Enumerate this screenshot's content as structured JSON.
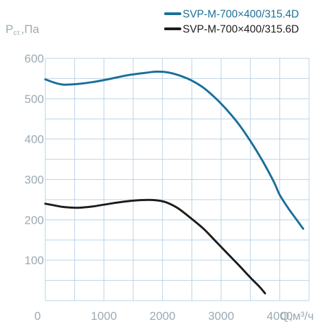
{
  "chart_data": {
    "type": "line",
    "xlabel": "Q,м³/ч",
    "ylabel": "Pст.,Па",
    "ylabel_main": "P",
    "ylabel_sub": "ст.",
    "ylabel_unit": ",Па",
    "xlim": [
      0,
      4500
    ],
    "ylim": [
      0,
      600
    ],
    "x_ticks": [
      0,
      1000,
      2000,
      3000,
      4000
    ],
    "y_ticks": [
      100,
      200,
      300,
      400,
      500,
      600
    ],
    "grid": true,
    "legend_position": "top-right",
    "series": [
      {
        "name": "SVP-M-700×400/315.4D",
        "color": "#1a6f98",
        "x": [
          0,
          150,
          300,
          500,
          800,
          1100,
          1400,
          1700,
          1900,
          2100,
          2300,
          2500,
          2700,
          2900,
          3100,
          3300,
          3500,
          3700,
          3900,
          4000,
          4150,
          4300,
          4400
        ],
        "y": [
          548,
          540,
          535,
          536,
          541,
          549,
          558,
          564,
          567,
          565,
          557,
          545,
          527,
          502,
          472,
          437,
          395,
          348,
          294,
          262,
          228,
          198,
          178
        ]
      },
      {
        "name": "SVP-M-700×400/315.6D",
        "color": "#1c1c1c",
        "x": [
          0,
          150,
          300,
          550,
          800,
          1100,
          1400,
          1650,
          1850,
          2050,
          2250,
          2450,
          2700,
          2900,
          3100,
          3300,
          3500,
          3650,
          3750
        ],
        "y": [
          240,
          236,
          232,
          230,
          233,
          240,
          246,
          249,
          249,
          244,
          230,
          208,
          178,
          148,
          118,
          88,
          57,
          35,
          18
        ]
      }
    ]
  }
}
